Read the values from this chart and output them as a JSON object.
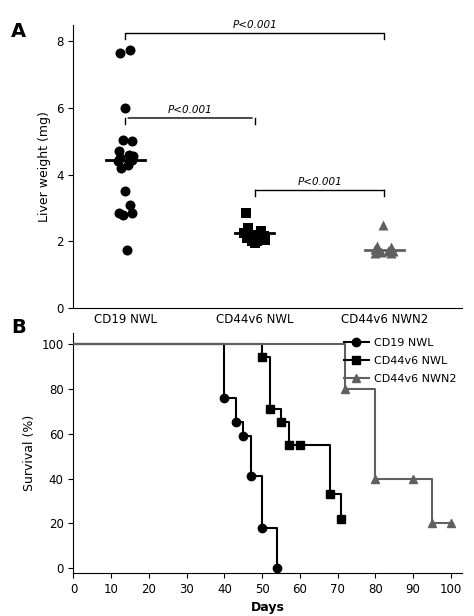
{
  "panel_A": {
    "ylabel": "Liver weight (mg)",
    "ylim": [
      0,
      8.5
    ],
    "yticks": [
      0,
      2,
      4,
      6,
      8
    ],
    "groups": [
      "CD19 NWL",
      "CD44v6 NWL",
      "CD44v6 NWN2"
    ],
    "cd19_nwl": [
      7.65,
      7.75,
      6.0,
      5.05,
      5.0,
      4.7,
      4.6,
      4.55,
      4.5,
      4.45,
      4.4,
      4.3,
      4.2,
      3.5,
      3.1,
      2.85,
      2.85,
      2.8,
      1.75
    ],
    "cd44v6_nwl": [
      2.85,
      2.4,
      2.3,
      2.25,
      2.2,
      2.2,
      2.15,
      2.15,
      2.1,
      2.1,
      2.05,
      2.05,
      2.0,
      2.0,
      1.95
    ],
    "cd44v6_nwn2": [
      2.5,
      1.85,
      1.82,
      1.78,
      1.75,
      1.72,
      1.7,
      1.7,
      1.68,
      1.65,
      1.65
    ],
    "cd19_mean": 4.45,
    "cd44v6_nwl_mean": 2.25,
    "cd44v6_nwn2_mean": 1.75,
    "j_cd19": [
      -0.04,
      0.04,
      0.0,
      -0.02,
      0.05,
      -0.05,
      0.03,
      0.06,
      -0.04,
      0.05,
      -0.06,
      0.02,
      -0.03,
      0.0,
      0.04,
      -0.05,
      0.05,
      -0.02,
      0.01
    ],
    "j_nwl": [
      -0.07,
      -0.05,
      0.05,
      -0.08,
      0.04,
      -0.04,
      0.07,
      -0.03,
      0.06,
      -0.06,
      0.03,
      0.08,
      -0.02,
      0.02,
      0.0
    ],
    "j_nwn2": [
      -0.01,
      -0.06,
      0.05,
      -0.07,
      0.06,
      -0.05,
      0.03,
      0.07,
      -0.03,
      -0.07,
      0.05
    ],
    "bracket1_x1": 1,
    "bracket1_x2": 2,
    "bracket1_y": 5.6,
    "bracket2_x1": 1,
    "bracket2_x2": 3,
    "bracket2_y": 8.1,
    "bracket3_x1": 2,
    "bracket3_x2": 3,
    "bracket3_y": 3.5
  },
  "panel_B": {
    "ylabel": "Survival (%)",
    "xlabel": "Days",
    "xlim": [
      0,
      103
    ],
    "ylim": [
      -2,
      105
    ],
    "xticks": [
      0,
      10,
      20,
      30,
      40,
      50,
      60,
      70,
      80,
      90,
      100
    ],
    "yticks": [
      0,
      20,
      40,
      60,
      80,
      100
    ],
    "cd19_x": [
      0,
      40,
      43,
      45,
      47,
      50,
      54
    ],
    "cd19_y": [
      100,
      76,
      65,
      59,
      41,
      18,
      0
    ],
    "nwl_x": [
      0,
      50,
      52,
      55,
      57,
      60,
      68,
      71
    ],
    "nwl_y": [
      100,
      94,
      71,
      65,
      55,
      55,
      33,
      22
    ],
    "nwn2_x": [
      0,
      72,
      80,
      90,
      95,
      100
    ],
    "nwn2_y": [
      100,
      80,
      40,
      40,
      20,
      20
    ]
  }
}
